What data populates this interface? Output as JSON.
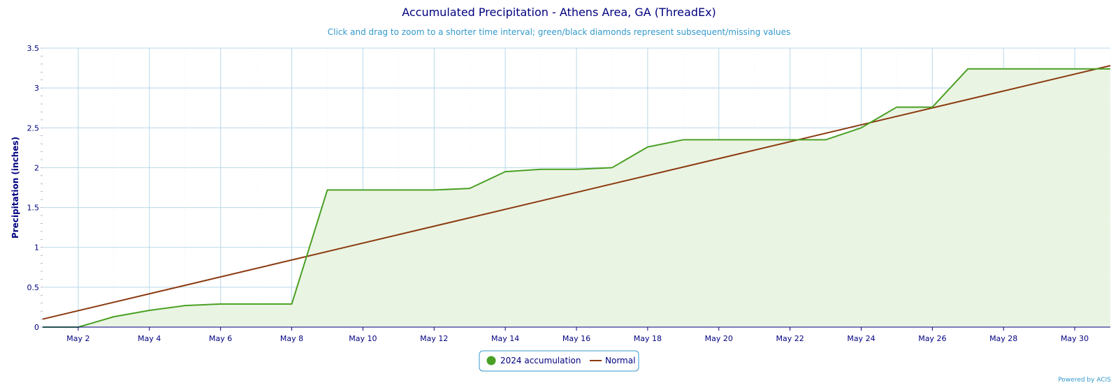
{
  "chart_data": {
    "type": "area",
    "title": "Accumulated Precipitation - Athens Area, GA (ThreadEx)",
    "subtitle": "Click and drag to zoom to a shorter time interval; green/black diamonds represent subsequent/missing values",
    "ylabel": "Precipitation (inches)",
    "xlabel": "",
    "ylim": [
      0,
      3.5
    ],
    "xlim": [
      1,
      31
    ],
    "y_ticks": [
      "0",
      "0.5",
      "1",
      "1.5",
      "2",
      "2.5",
      "3",
      "3.5"
    ],
    "x_ticks": [
      "May 2",
      "May 4",
      "May 6",
      "May 8",
      "May 10",
      "May 12",
      "May 14",
      "May 16",
      "May 18",
      "May 20",
      "May 22",
      "May 24",
      "May 26",
      "May 28",
      "May 30"
    ],
    "grid": true,
    "legend_position": "bottom-center",
    "credit": "Powered by ACIS",
    "colors": {
      "accumulation": "#4aa024",
      "accumulation_fill": "#eaf4e3",
      "normal": "#8b3a10",
      "grid": "#b8d8ea",
      "text": "#000080",
      "subtitle": "#3399cc"
    },
    "series": [
      {
        "name": "2024 accumulation",
        "x": [
          1,
          2,
          3,
          4,
          5,
          6,
          7,
          8,
          9,
          10,
          11,
          12,
          13,
          14,
          15,
          16,
          17,
          18,
          19,
          20,
          21,
          22,
          23,
          24,
          25,
          26,
          27,
          28,
          29,
          30,
          31
        ],
        "values": [
          0,
          0,
          0.13,
          0.21,
          0.27,
          0.29,
          0.29,
          0.29,
          1.72,
          1.72,
          1.72,
          1.72,
          1.74,
          1.95,
          1.98,
          1.98,
          2.0,
          2.26,
          2.35,
          2.35,
          2.35,
          2.35,
          2.35,
          2.5,
          2.76,
          2.76,
          3.24,
          3.24,
          3.24,
          3.24,
          3.24
        ]
      },
      {
        "name": "Normal",
        "x": [
          1,
          31
        ],
        "values": [
          0.1,
          3.28
        ]
      }
    ]
  }
}
